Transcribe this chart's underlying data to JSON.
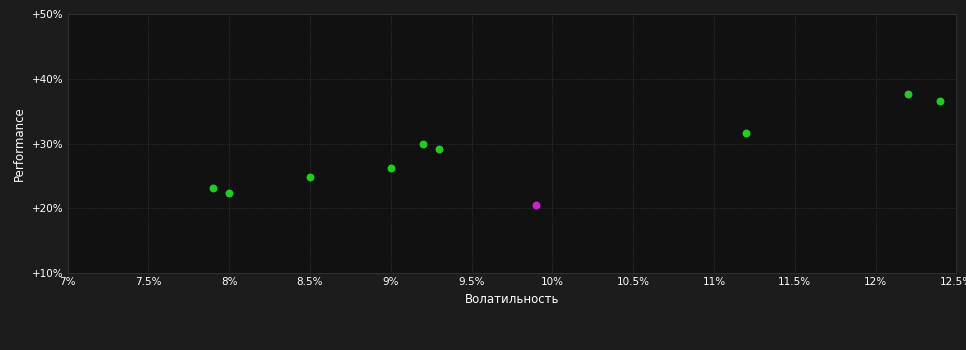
{
  "background_color": "#1c1c1c",
  "plot_bg_color": "#111111",
  "grid_color": "#3a3a3a",
  "text_color": "#ffffff",
  "xlabel": "Волатильность",
  "ylabel": "Performance",
  "xlim": [
    0.07,
    0.125
  ],
  "ylim": [
    0.1,
    0.5
  ],
  "xticks": [
    0.07,
    0.075,
    0.08,
    0.085,
    0.09,
    0.095,
    0.1,
    0.105,
    0.11,
    0.115,
    0.12,
    0.125
  ],
  "xtick_labels": [
    "7%",
    "7.5%",
    "8%",
    "8.5%",
    "9%",
    "9.5%",
    "10%",
    "10.5%",
    "11%",
    "11.5%",
    "12%",
    "12.5%"
  ],
  "yticks": [
    0.1,
    0.2,
    0.3,
    0.4,
    0.5
  ],
  "ytick_labels": [
    "+10%",
    "+20%",
    "+30%",
    "+40%",
    "+50%"
  ],
  "green_points": [
    [
      0.079,
      0.232
    ],
    [
      0.08,
      0.224
    ],
    [
      0.085,
      0.248
    ],
    [
      0.09,
      0.262
    ],
    [
      0.092,
      0.3
    ],
    [
      0.093,
      0.291
    ],
    [
      0.112,
      0.316
    ],
    [
      0.122,
      0.376
    ],
    [
      0.124,
      0.366
    ]
  ],
  "magenta_points": [
    [
      0.099,
      0.205
    ]
  ],
  "green_color": "#22cc22",
  "magenta_color": "#cc22cc",
  "marker_size": 22
}
